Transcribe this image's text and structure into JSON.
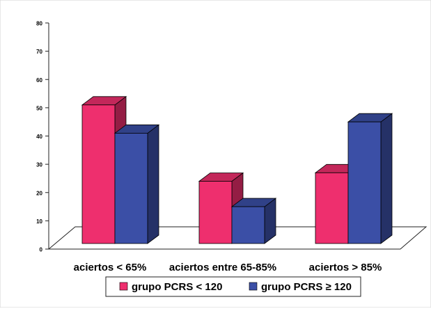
{
  "chart_data": {
    "type": "bar",
    "title": "",
    "xlabel": "",
    "ylabel": "",
    "ylim": [
      0,
      80
    ],
    "yticks": [
      "0",
      "10",
      "20",
      "30",
      "40",
      "50",
      "60",
      "70",
      "80"
    ],
    "categories": [
      "aciertos < 65%",
      "aciertos entre 65-85%",
      "aciertos > 85%"
    ],
    "series": [
      {
        "name": "grupo PCRS < 120",
        "values": [
          51,
          24,
          27
        ],
        "color": "#ee2f6e"
      },
      {
        "name": "grupo PCRS ≥ 120",
        "values": [
          41,
          15,
          45
        ],
        "color": "#3b4fa6"
      }
    ],
    "grid": false,
    "legend_position": "bottom",
    "style": "3d-clustered-columns"
  }
}
